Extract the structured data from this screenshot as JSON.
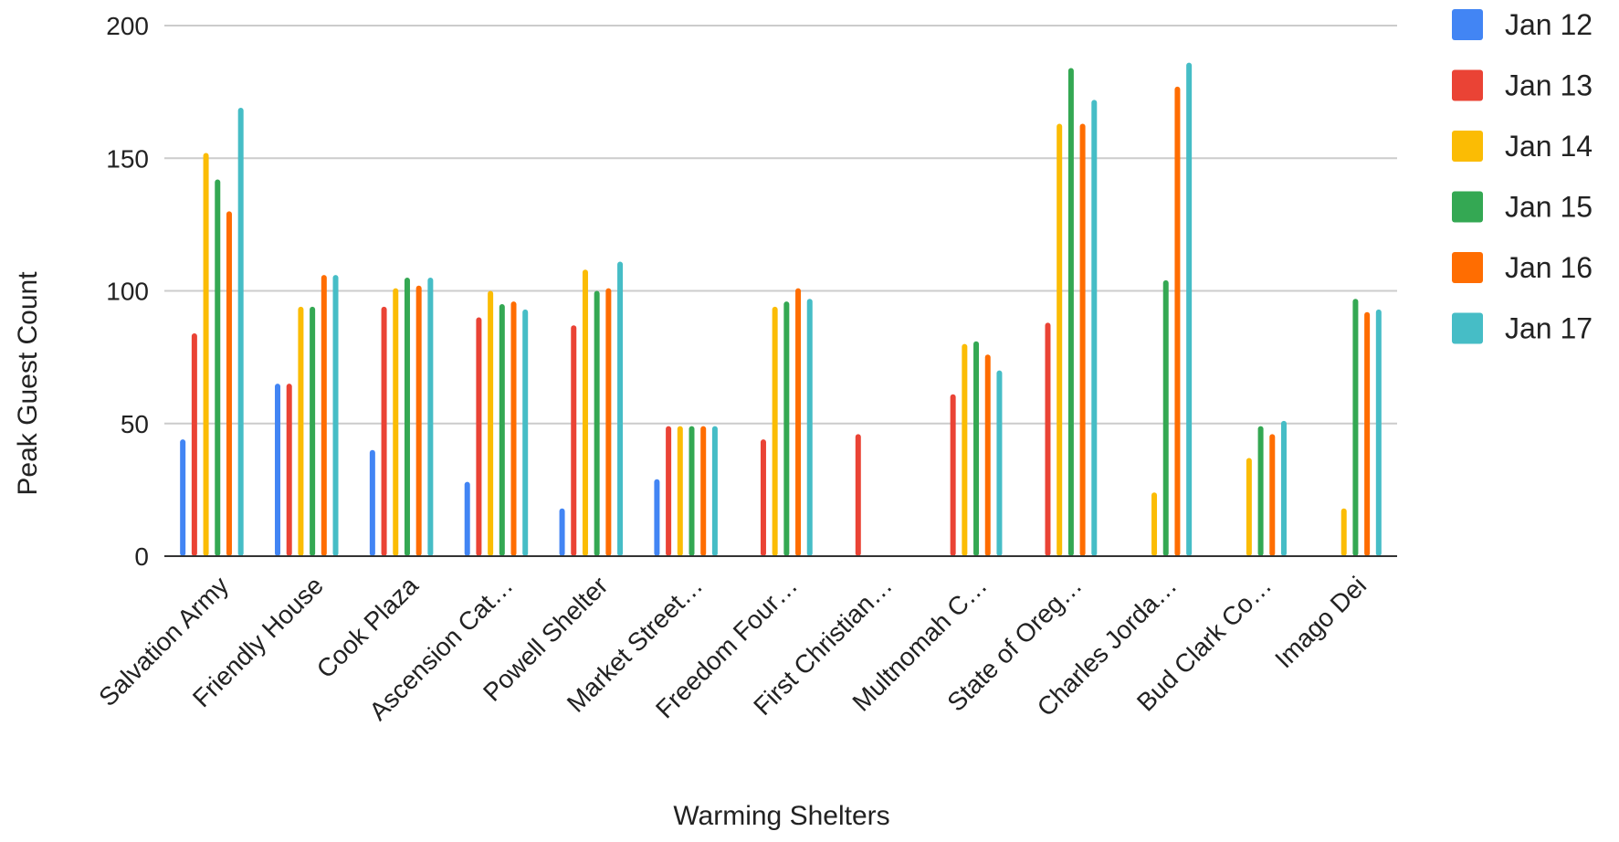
{
  "chart_data": {
    "type": "bar",
    "xlabel": "Warming Shelters",
    "ylabel": "Peak Guest Count",
    "ylim": [
      0,
      200
    ],
    "yticks": [
      0,
      50,
      100,
      150,
      200
    ],
    "grid": true,
    "legend_position": "right",
    "categories": [
      "Salvation Army",
      "Friendly House",
      "Cook Plaza",
      "Ascension Cat…",
      "Powell Shelter",
      "Market Street…",
      "Freedom Four…",
      "First Christian…",
      "Multnomah C…",
      "State of Oreg…",
      "Charles Jorda…",
      "Bud Clark Co…",
      "Imago Dei"
    ],
    "series": [
      {
        "name": "Jan 12",
        "color": "#4285F4",
        "values": [
          44,
          65,
          40,
          28,
          18,
          29,
          null,
          null,
          null,
          null,
          null,
          null,
          null
        ]
      },
      {
        "name": "Jan 13",
        "color": "#EA4335",
        "values": [
          84,
          65,
          94,
          90,
          87,
          49,
          44,
          46,
          61,
          88,
          null,
          null,
          null
        ]
      },
      {
        "name": "Jan 14",
        "color": "#FBBC04",
        "values": [
          152,
          94,
          101,
          100,
          108,
          49,
          94,
          null,
          80,
          163,
          24,
          37,
          18
        ]
      },
      {
        "name": "Jan 15",
        "color": "#34A853",
        "values": [
          142,
          94,
          105,
          95,
          100,
          49,
          96,
          null,
          81,
          184,
          104,
          49,
          97
        ]
      },
      {
        "name": "Jan 16",
        "color": "#FF6D01",
        "values": [
          130,
          106,
          102,
          96,
          101,
          49,
          101,
          null,
          76,
          163,
          177,
          46,
          92
        ]
      },
      {
        "name": "Jan 17",
        "color": "#46BDC6",
        "values": [
          169,
          106,
          105,
          93,
          111,
          49,
          97,
          null,
          70,
          172,
          186,
          51,
          93
        ]
      }
    ]
  }
}
